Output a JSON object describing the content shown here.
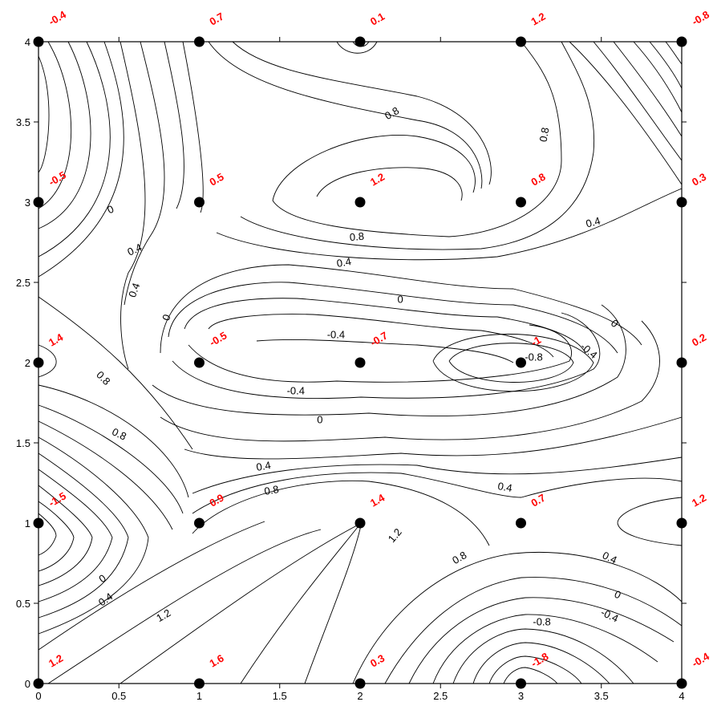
{
  "chart_data": {
    "type": "contour",
    "title": "",
    "xlabel": "",
    "ylabel": "",
    "xlim": [
      0,
      4
    ],
    "ylim": [
      0,
      4
    ],
    "x_ticks": [
      "0",
      "0.5",
      "1",
      "1.5",
      "2",
      "2.5",
      "3",
      "3.5",
      "4"
    ],
    "y_ticks": [
      "0",
      "0.5",
      "1",
      "1.5",
      "2",
      "2.5",
      "3",
      "3.5",
      "4"
    ],
    "grid": false,
    "point_color": "#ff0000",
    "line_color": "#000000",
    "points": [
      {
        "x": 0,
        "y": 0,
        "label": "1.2"
      },
      {
        "x": 1,
        "y": 0,
        "label": "1.6"
      },
      {
        "x": 2,
        "y": 0,
        "label": "0.3"
      },
      {
        "x": 3,
        "y": 0,
        "label": "-1.8"
      },
      {
        "x": 4,
        "y": 0,
        "label": "-0.4"
      },
      {
        "x": 0,
        "y": 1,
        "label": "-1.5"
      },
      {
        "x": 1,
        "y": 1,
        "label": "0.9"
      },
      {
        "x": 2,
        "y": 1,
        "label": "1.4"
      },
      {
        "x": 3,
        "y": 1,
        "label": "0.7"
      },
      {
        "x": 4,
        "y": 1,
        "label": "1.2"
      },
      {
        "x": 0,
        "y": 2,
        "label": "1.4"
      },
      {
        "x": 1,
        "y": 2,
        "label": "-0.5"
      },
      {
        "x": 2,
        "y": 2,
        "label": "-0.7"
      },
      {
        "x": 3,
        "y": 2,
        "label": "-1"
      },
      {
        "x": 4,
        "y": 2,
        "label": "0.2"
      },
      {
        "x": 0,
        "y": 3,
        "label": "-0.5"
      },
      {
        "x": 1,
        "y": 3,
        "label": "0.5"
      },
      {
        "x": 2,
        "y": 3,
        "label": "1.2"
      },
      {
        "x": 3,
        "y": 3,
        "label": "0.8"
      },
      {
        "x": 4,
        "y": 3,
        "label": "0.3"
      },
      {
        "x": 0,
        "y": 4,
        "label": "-0.4"
      },
      {
        "x": 1,
        "y": 4,
        "label": "0.7"
      },
      {
        "x": 2,
        "y": 4,
        "label": "0.1"
      },
      {
        "x": 3,
        "y": 4,
        "label": "1.2"
      },
      {
        "x": 4,
        "y": 4,
        "label": "-0.8"
      }
    ],
    "contour_labels": [
      {
        "x": 0.45,
        "y": 2.95,
        "text": "0",
        "angle": -25
      },
      {
        "x": 0.6,
        "y": 2.7,
        "text": "0.4",
        "angle": -25
      },
      {
        "x": 0.6,
        "y": 2.45,
        "text": "0.4",
        "angle": -70
      },
      {
        "x": 0.8,
        "y": 2.28,
        "text": "0",
        "angle": -70
      },
      {
        "x": 0.4,
        "y": 1.9,
        "text": "0.8",
        "angle": 45
      },
      {
        "x": 0.5,
        "y": 1.55,
        "text": "0.8",
        "angle": 25
      },
      {
        "x": 0.4,
        "y": 0.65,
        "text": "0",
        "angle": -35
      },
      {
        "x": 0.42,
        "y": 0.52,
        "text": "0.4",
        "angle": -35
      },
      {
        "x": 0.78,
        "y": 0.42,
        "text": "1.2",
        "angle": -30
      },
      {
        "x": 1.45,
        "y": 1.2,
        "text": "0.8",
        "angle": -10
      },
      {
        "x": 1.4,
        "y": 1.35,
        "text": "0.4",
        "angle": -10
      },
      {
        "x": 1.75,
        "y": 1.64,
        "text": "0",
        "angle": 0
      },
      {
        "x": 1.6,
        "y": 1.82,
        "text": "-0.4",
        "angle": 0
      },
      {
        "x": 1.85,
        "y": 2.17,
        "text": "-0.4",
        "angle": 0
      },
      {
        "x": 2.25,
        "y": 2.39,
        "text": "0",
        "angle": 0
      },
      {
        "x": 1.9,
        "y": 2.62,
        "text": "0.4",
        "angle": -10
      },
      {
        "x": 1.98,
        "y": 2.78,
        "text": "0.8",
        "angle": -5
      },
      {
        "x": 2.2,
        "y": 3.55,
        "text": "0.8",
        "angle": -30
      },
      {
        "x": 3.15,
        "y": 3.42,
        "text": "0.8",
        "angle": -80
      },
      {
        "x": 3.45,
        "y": 2.87,
        "text": "0.4",
        "angle": -15
      },
      {
        "x": 3.08,
        "y": 2.03,
        "text": "-0.8",
        "angle": 0
      },
      {
        "x": 3.42,
        "y": 2.07,
        "text": "-0.4",
        "angle": 40
      },
      {
        "x": 3.58,
        "y": 2.24,
        "text": "0",
        "angle": 40
      },
      {
        "x": 2.9,
        "y": 1.22,
        "text": "0.4",
        "angle": 10
      },
      {
        "x": 2.22,
        "y": 0.92,
        "text": "1.2",
        "angle": -50
      },
      {
        "x": 2.62,
        "y": 0.78,
        "text": "0.8",
        "angle": -30
      },
      {
        "x": 3.55,
        "y": 0.78,
        "text": "0.4",
        "angle": 25
      },
      {
        "x": 3.6,
        "y": 0.55,
        "text": "0",
        "angle": 25
      },
      {
        "x": 3.55,
        "y": 0.42,
        "text": "-0.4",
        "angle": 25
      },
      {
        "x": 3.13,
        "y": 0.38,
        "text": "-0.8",
        "angle": 0
      }
    ]
  }
}
